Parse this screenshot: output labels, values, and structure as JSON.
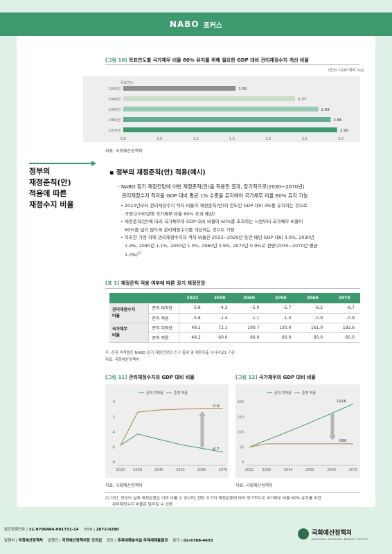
{
  "header": {
    "logo": "NABO",
    "focus": "포커스"
  },
  "figure10": {
    "title_tag": "[그림 10]",
    "title": "목표연도별 국가채무 비율 60% 유지를 위해 필요한 GDP 대비 관리재정수지 개선 비율",
    "unit": "(단위: GDP 대비 %p)",
    "source": "자료: 국회예산정책처"
  },
  "section": {
    "side_title_lines": [
      "정부의",
      "재정준칙(안)",
      "적용에 따른",
      "재정수지 비율"
    ],
    "heading": "▪ 정부의 재정준칙(안) 적용(예시)",
    "para_lines": [
      "- NABO 장기 재정전망에 이번 재정준칙(안)을 적용한 결과, 장기적으로(2030~2070년)",
      "관리재정수지 적자를 GDP 대비 평균 1% 수준을 유지해야 국가채무 비율 60% 유지 가능"
    ],
    "bullets": [
      "• 2023년부터 관리재정수지 적자 비율이 재정준칙(안)의 한도인 GDP 대비 3%를 유지하는 것으로",
      "가정(2030년에 국가채무 비율 60% 초과 예상)",
      "• 재정준칙(안)에 따라 국가채무의 GDP 대비 비율이 60%를 초과하는 시점부터 국가채무 비율이",
      "60%를 넘지 않도록 관리재정수지를 개선하는 것으로 가정",
      "• 이러한 가정 하에 관리재정수지의 적자 비율은 2023~2029년 동안 매년 GDP 대비 3.0%, 2030년",
      "1.4%, 2040년 1.1%, 2050년 1.0%, 2060년 0.9%, 2070년 0.9%로 전망(2030~2070년 평균",
      "1.0%)"
    ],
    "bullet_sup": "2)"
  },
  "table1": {
    "title_tag": "[표 1]",
    "title": "재정준칙 적용 여부에 따른 장기 재정전망",
    "years": [
      "2022",
      "2030",
      "2040",
      "2050",
      "2060",
      "2070"
    ],
    "groups": [
      {
        "name_lines": [
          "관리재정수지",
          "비율"
        ],
        "rows": [
          {
            "label": "준칙 미적용",
            "values": [
              "-5.8",
              "-4.3",
              "-5.0",
              "-5.7",
              "-6.2",
              "-6.7"
            ]
          },
          {
            "label": "준칙 적용",
            "values": [
              "-5.8",
              "-1.4",
              "-1.1",
              "-1.0",
              "-0.9",
              "-0.9"
            ]
          }
        ]
      },
      {
        "name_lines": [
          "국가채무",
          "비율"
        ],
        "rows": [
          {
            "label": "준칙 미적용",
            "values": [
              "49.2",
              "72.1",
              "100.7",
              "130.0",
              "161.0",
              "192.6"
            ]
          },
          {
            "label": "준칙 적용",
            "values": [
              "49.2",
              "60.0",
              "60.0",
              "60.0",
              "60.0",
              "60.0"
            ]
          }
        ]
      }
    ],
    "note": "주: 준칙 미적용은 NABO 장기 재정전망의 인구 중위 및 재량지출 시나리오1 기준",
    "source": "자료: 국회예산정책처"
  },
  "figure11": {
    "title_tag": "[그림 11]",
    "title": "관리재정수지의 GDP 대비 비율",
    "source": "자료: 국회예산정책처"
  },
  "figure12": {
    "title_tag": "[그림 12]",
    "title": "국가채무의 GDP 대비 비율",
    "source": "자료: 국회예산정책처"
  },
  "footnote_lines": [
    "2)  다만, 정부의 실제 재정운용은 이와 다를 수 있으며, 전망 초기의 재정운용에 따라 장기적으로 국가채무 비율 60% 유지를 위한",
    "관리재정수지 비율은 달라질 수 있음"
  ],
  "footer": {
    "reg_label": "발간등록번호",
    "reg_value": "31-9700484-001731-14",
    "issn_label": "ISSN",
    "issn_value": "2672-0280",
    "pub_label": "발행처",
    "pub_value": "국회예산정책처",
    "publisher_label": "발행인",
    "publisher_value": "국회예산정책처장 조의섭",
    "dept_label": "담당",
    "dept_value": "추계세제분석실 추계세제총괄과",
    "contact_label": "문의",
    "contact_value": "02-6788-4655",
    "org_name": "국회예산정책처",
    "org_en": "NATIONAL ASSEMBLY BUDGET OFFICE"
  },
  "colors": {
    "brand": "#3d9a6e",
    "band": "#dff0e6"
  },
  "chart_data": [
    {
      "type": "bar",
      "orientation": "horizontal",
      "y_header": "목표연도",
      "categories": [
        "2030년",
        "2040년",
        "2050년",
        "2060년",
        "2070년"
      ],
      "values": [
        1.55,
        2.37,
        2.69,
        2.86,
        2.95
      ],
      "colors": [
        "#8f8f8f",
        "#c8ddc7",
        "#99cdb3",
        "#62ae8c",
        "#3d9a6e"
      ],
      "xlim": [
        0,
        3.0
      ],
      "xticks": [
        "0.0",
        "0.5",
        "1.0",
        "1.5",
        "2.0",
        "2.5",
        "3.0"
      ]
    },
    {
      "type": "line",
      "x": [
        2022,
        2030,
        2040,
        2050,
        2060,
        2070
      ],
      "xticks": [
        "2022",
        "2030",
        "2040",
        "2050",
        "2060",
        "2070"
      ],
      "ylim": [
        -8,
        0
      ],
      "yticks": [
        "0",
        "-2",
        "-4",
        "-6",
        "-8"
      ],
      "series": [
        {
          "name": "준칙 미적용",
          "color": "#3d9a6e",
          "values": [
            -5.8,
            -4.3,
            -5.0,
            -5.7,
            -6.2,
            -6.7
          ]
        },
        {
          "name": "준칙 적용",
          "color": "#a08a4a",
          "values": [
            -5.8,
            -1.4,
            -1.1,
            -1.0,
            -0.9,
            -0.9
          ]
        }
      ],
      "labels": [
        "-0.9",
        "-6.7"
      ]
    },
    {
      "type": "line",
      "x": [
        2022,
        2030,
        2040,
        2050,
        2060,
        2070
      ],
      "xticks": [
        "2022",
        "2030",
        "2040",
        "2050",
        "2060",
        "2070"
      ],
      "ylim": [
        0,
        200
      ],
      "yticks": [
        "200",
        "150",
        "100",
        "50",
        "0"
      ],
      "series": [
        {
          "name": "준칙 미적용",
          "color": "#3d9a6e",
          "values": [
            49.2,
            72.1,
            100.7,
            130.0,
            161.0,
            192.6
          ]
        },
        {
          "name": "준칙 적용",
          "color": "#a08a4a",
          "values": [
            49.2,
            60.0,
            60.0,
            60.0,
            60.0,
            60.0
          ]
        }
      ],
      "labels": [
        "1926",
        "600"
      ]
    }
  ]
}
